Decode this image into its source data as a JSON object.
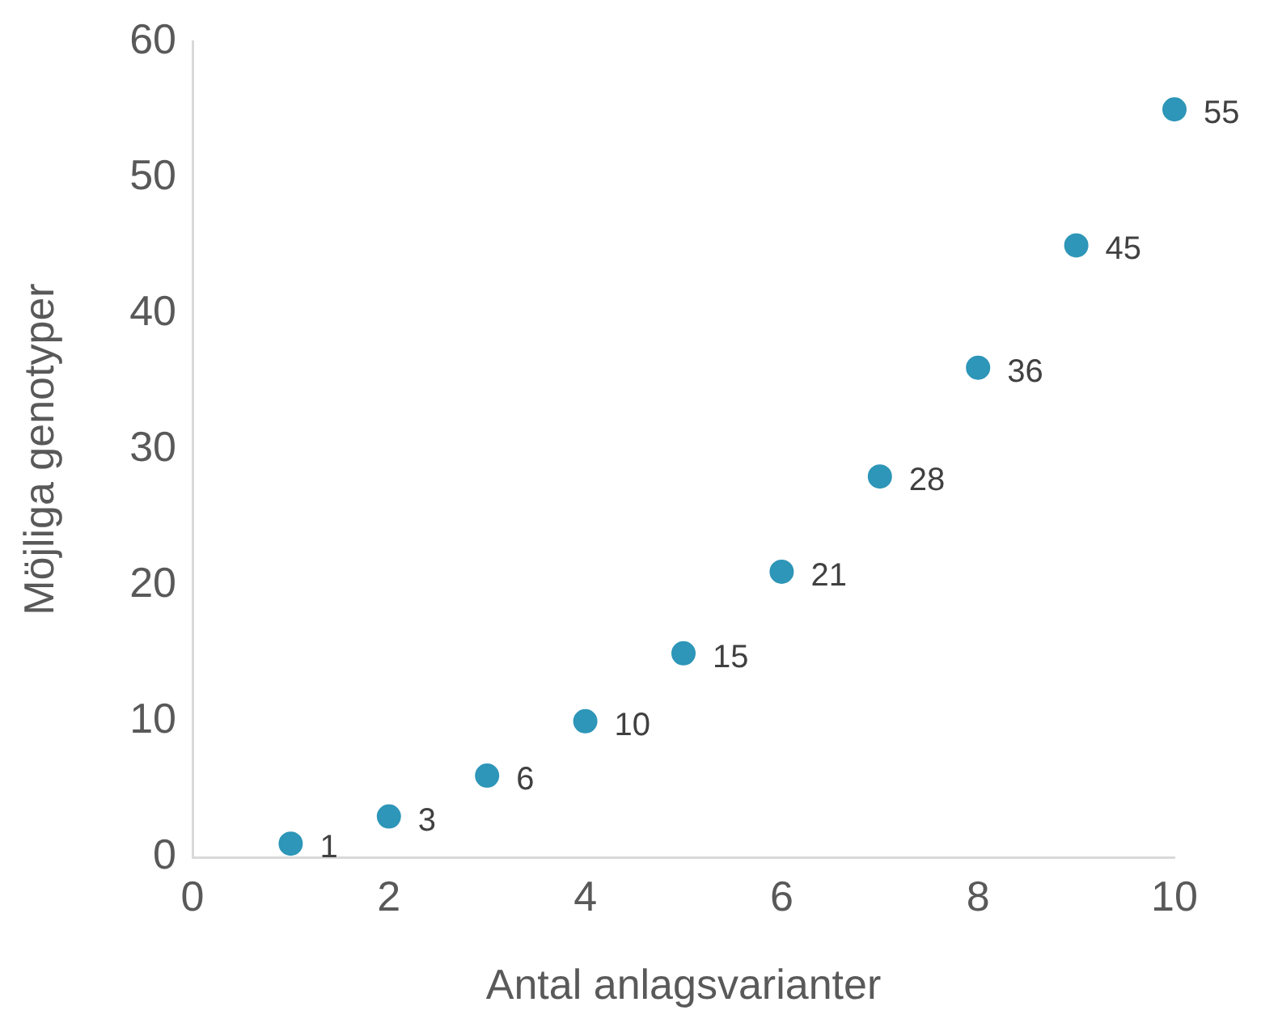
{
  "chart_data": {
    "type": "scatter",
    "xlabel": "Antal anlagsvarianter",
    "ylabel": "Möjliga genotyper",
    "x": [
      1,
      2,
      3,
      4,
      5,
      6,
      7,
      8,
      9,
      10
    ],
    "values": [
      1,
      3,
      6,
      10,
      15,
      21,
      28,
      36,
      45,
      55
    ],
    "color": "#2e96b8",
    "marker": "circle",
    "data_labels": true,
    "grid": false,
    "legend": false,
    "xlim": [
      0,
      10
    ],
    "xticks": [
      0,
      2,
      4,
      6,
      8,
      10
    ],
    "ylim": [
      0,
      60
    ],
    "yticks": [
      0,
      10,
      20,
      30,
      40,
      50,
      60
    ]
  }
}
